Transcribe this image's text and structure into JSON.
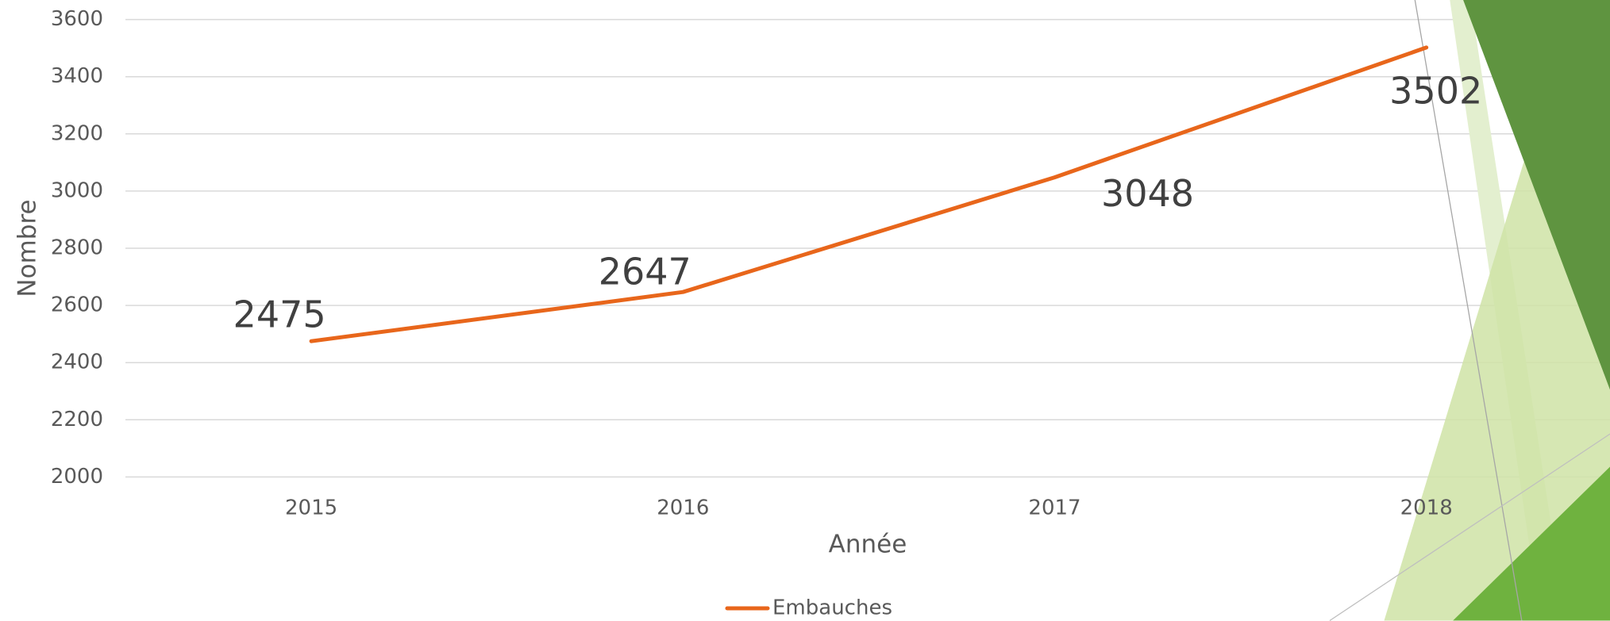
{
  "chart_data": {
    "type": "line",
    "categories": [
      "2015",
      "2016",
      "2017",
      "2018"
    ],
    "series": [
      {
        "name": "Embauches",
        "color": "#e8661b",
        "values": [
          2475,
          2647,
          3048,
          3502
        ]
      }
    ],
    "xlabel": "Année",
    "ylabel": "Nombre",
    "ylim": [
      2000,
      3600
    ],
    "yticks": [
      2000,
      2200,
      2400,
      2600,
      2800,
      3000,
      3200,
      3400,
      3600
    ],
    "grid": true,
    "legend": "bottom"
  }
}
